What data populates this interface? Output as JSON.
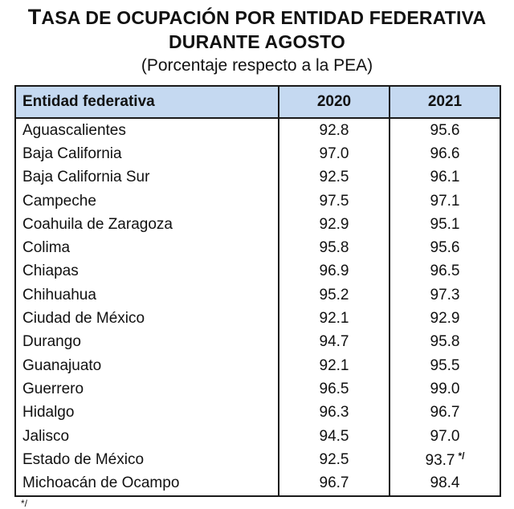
{
  "title": {
    "line1_first_letter": "T",
    "line1_rest": "ASA DE OCUPACIÓN POR ENTIDAD FEDERATIVA",
    "line2": "DURANTE AGOSTO",
    "subtitle": "(Porcentaje respecto a la PEA)"
  },
  "table": {
    "headers": [
      "Entidad federativa",
      "2020",
      "2021"
    ],
    "rows": [
      {
        "state": "Aguascalientes",
        "v2020": "92.8",
        "v2021": "95.6",
        "note": ""
      },
      {
        "state": "Baja California",
        "v2020": "97.0",
        "v2021": "96.6",
        "note": ""
      },
      {
        "state": "Baja California Sur",
        "v2020": "92.5",
        "v2021": "96.1",
        "note": ""
      },
      {
        "state": "Campeche",
        "v2020": "97.5",
        "v2021": "97.1",
        "note": ""
      },
      {
        "state": "Coahuila de Zaragoza",
        "v2020": "92.9",
        "v2021": "95.1",
        "note": ""
      },
      {
        "state": "Colima",
        "v2020": "95.8",
        "v2021": "95.6",
        "note": ""
      },
      {
        "state": "Chiapas",
        "v2020": "96.9",
        "v2021": "96.5",
        "note": ""
      },
      {
        "state": "Chihuahua",
        "v2020": "95.2",
        "v2021": "97.3",
        "note": ""
      },
      {
        "state": "Ciudad de México",
        "v2020": "92.1",
        "v2021": "92.9",
        "note": ""
      },
      {
        "state": "Durango",
        "v2020": "94.7",
        "v2021": "95.8",
        "note": ""
      },
      {
        "state": "Guanajuato",
        "v2020": "92.1",
        "v2021": "95.5",
        "note": ""
      },
      {
        "state": "Guerrero",
        "v2020": "96.5",
        "v2021": "99.0",
        "note": ""
      },
      {
        "state": "Hidalgo",
        "v2020": "96.3",
        "v2021": "96.7",
        "note": ""
      },
      {
        "state": "Jalisco",
        "v2020": "94.5",
        "v2021": "97.0",
        "note": ""
      },
      {
        "state": "Estado de México",
        "v2020": "92.5",
        "v2021": "93.7",
        "note": "*/"
      },
      {
        "state": "Michoacán de Ocampo",
        "v2020": "96.7",
        "v2021": "98.4",
        "note": ""
      }
    ]
  },
  "footnote_mark": "*/"
}
